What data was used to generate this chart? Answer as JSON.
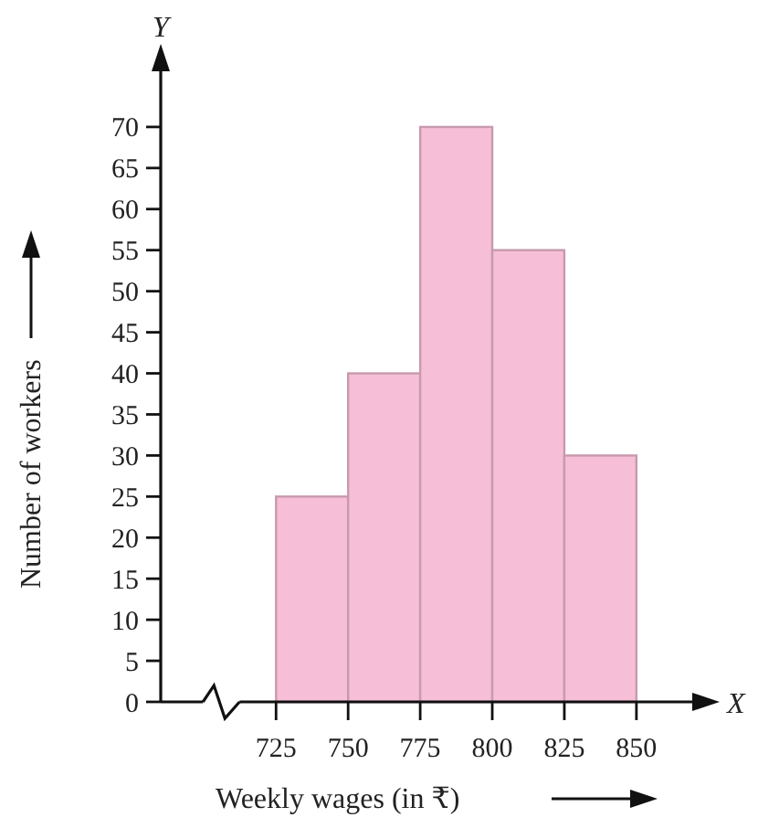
{
  "chart_data": {
    "type": "histogram",
    "xlabel": "Weekly wages (in ₹)",
    "ylabel": "Number of workers",
    "bins": [
      725,
      750,
      775,
      800,
      825,
      850
    ],
    "values": [
      25,
      40,
      70,
      55,
      30
    ],
    "color": "#f7bfd7",
    "xlim": [
      685,
      870
    ],
    "xticks": [
      725,
      750,
      775,
      800,
      825,
      850
    ],
    "ylim": [
      0,
      77
    ],
    "yticks": [
      0,
      5,
      10,
      15,
      20,
      25,
      30,
      35,
      40,
      45,
      50,
      55,
      60,
      65,
      70
    ],
    "grid": false,
    "annotations": [
      "Y",
      "X"
    ]
  }
}
